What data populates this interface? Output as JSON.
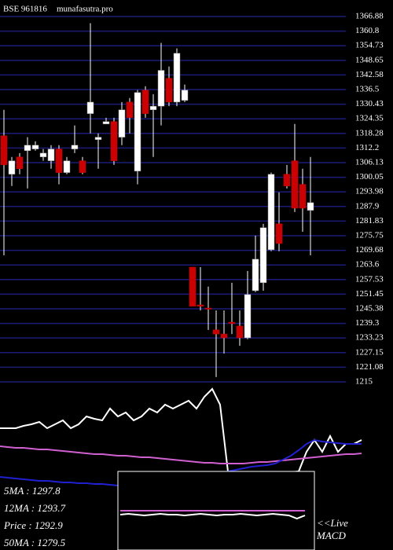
{
  "chart_data": [
    {
      "type": "candlestick",
      "title": "BSE 961816",
      "source": "munafasutra.pro",
      "open": [
        1317.3,
        1301.3,
        1308.5,
        1311.1,
        1311.8,
        1308.5,
        1306.9,
        1311.8,
        1302.0,
        1311.8,
        1306.9,
        1326.5,
        1315.7,
        1322.2,
        1323.2,
        1316.7,
        1331.3,
        1302.6,
        1336.3,
        1328.1,
        1329.6,
        1341.2,
        1331.3,
        1332.0,
        1262.7,
        1247.0,
        1245.7,
        1236.6,
        1234.9,
        1239.8,
        1238.2,
        1233.3,
        1252.9,
        1256.2,
        1269.9,
        1280.7,
        1301.3,
        1306.9,
        1297.1,
        1286.3
      ],
      "high": [
        1328.1,
        1308.5,
        1310.1,
        1316.7,
        1315.0,
        1311.8,
        1313.4,
        1313.4,
        1308.5,
        1321.6,
        1308.5,
        1364.1,
        1318.3,
        1324.8,
        1324.8,
        1331.3,
        1333.0,
        1336.3,
        1337.9,
        1334.6,
        1355.9,
        1346.1,
        1353.6,
        1338.6,
        1262.7,
        1262.7,
        1254.6,
        1244.7,
        1244.7,
        1256.2,
        1244.7,
        1261.1,
        1275.8,
        1280.7,
        1302.0,
        1293.8,
        1305.2,
        1322.2,
        1303.6,
        1308.5
      ],
      "low": [
        1267.6,
        1296.4,
        1301.3,
        1295.4,
        1311.1,
        1306.9,
        1303.6,
        1297.1,
        1301.3,
        1310.1,
        1301.3,
        1318.3,
        1303.6,
        1322.2,
        1305.2,
        1313.4,
        1318.3,
        1297.1,
        1324.8,
        1308.5,
        1321.6,
        1329.6,
        1329.6,
        1331.3,
        1246.4,
        1244.7,
        1236.6,
        1217.0,
        1226.8,
        1234.9,
        1230.0,
        1232.7,
        1252.3,
        1252.9,
        1269.3,
        1269.3,
        1295.4,
        1285.6,
        1277.4,
        1267.6
      ],
      "close": [
        1305.2,
        1306.9,
        1303.6,
        1313.4,
        1313.4,
        1310.1,
        1311.8,
        1302.0,
        1306.9,
        1313.4,
        1302.0,
        1331.3,
        1316.7,
        1323.2,
        1306.9,
        1328.1,
        1324.8,
        1335.3,
        1326.5,
        1329.6,
        1344.5,
        1331.3,
        1351.6,
        1336.3,
        1246.4,
        1246.4,
        1245.4,
        1234.9,
        1233.3,
        1239.2,
        1233.3,
        1251.3,
        1266.0,
        1279.1,
        1301.3,
        1272.5,
        1296.4,
        1287.2,
        1287.2,
        1289.5
      ],
      "ylim": [
        1215,
        1366.88
      ],
      "yticks": [
        1366.88,
        1360.8,
        1354.73,
        1348.65,
        1342.58,
        1336.5,
        1330.43,
        1324.35,
        1318.28,
        1312.2,
        1306.13,
        1300.05,
        1293.98,
        1287.9,
        1281.83,
        1275.75,
        1269.68,
        1263.6,
        1257.53,
        1251.45,
        1245.38,
        1239.3,
        1233.23,
        1227.15,
        1221.08,
        1215
      ],
      "grid": true,
      "grid_color": "#1c1c78",
      "up_color": "#ffffff",
      "down_color": "#cc0000"
    },
    {
      "type": "line",
      "ylim": [
        0,
        210
      ],
      "series": [
        {
          "color": "#ffffff",
          "values": [
            155,
            155,
            155,
            158,
            160,
            163,
            155,
            160,
            165,
            155,
            160,
            170,
            167,
            165,
            180,
            170,
            175,
            165,
            170,
            180,
            175,
            185,
            180,
            185,
            190,
            180,
            195,
            205,
            185,
            100,
            95,
            95,
            95,
            96,
            97,
            97,
            98,
            99,
            100,
            125,
            140,
            125,
            145,
            125,
            135,
            135,
            140
          ]
        },
        {
          "color": "#d060d0",
          "values": [
            132,
            131,
            130,
            130,
            129,
            128,
            128,
            127,
            126,
            125,
            124,
            123,
            122,
            122,
            121,
            120,
            120,
            119,
            118,
            118,
            117,
            116,
            115,
            114,
            113,
            112,
            111,
            111,
            110,
            110,
            110,
            110,
            111,
            112,
            112,
            113,
            114,
            115,
            116,
            117,
            118,
            119,
            120,
            121,
            122,
            122,
            123
          ]
        },
        {
          "color": "#2020d0",
          "values": [
            93,
            92,
            91,
            90,
            89,
            88,
            88,
            87,
            86,
            86,
            85,
            85,
            84,
            84,
            83,
            82,
            82,
            81,
            81,
            80,
            80,
            80,
            81,
            82,
            84,
            86,
            88,
            90,
            95,
            100,
            102,
            104,
            106,
            107,
            108,
            110,
            115,
            120,
            127,
            135,
            140,
            138,
            137,
            136,
            135,
            135,
            135
          ]
        }
      ]
    },
    {
      "type": "macd",
      "ylim": [
        0,
        100
      ],
      "label_lines": [
        "<<Live",
        "MACD"
      ],
      "series": [
        {
          "color": "#d060d0",
          "values": [
            50,
            50,
            50,
            50,
            50,
            50,
            50,
            50,
            50,
            50,
            50,
            50,
            50,
            50,
            50,
            50,
            50,
            50,
            50,
            50,
            50,
            50,
            50,
            50
          ]
        },
        {
          "color": "#ffffff",
          "values": [
            45,
            46,
            45,
            44,
            45,
            46,
            45,
            45,
            44,
            45,
            46,
            45,
            44,
            45,
            45,
            46,
            45,
            44,
            45,
            46,
            45,
            44,
            40,
            44
          ]
        }
      ]
    }
  ],
  "indicators": [
    "5MA : 1297.8",
    "12MA : 1293.7",
    "Price : 1292.9",
    "50MA : 1279.5"
  ]
}
